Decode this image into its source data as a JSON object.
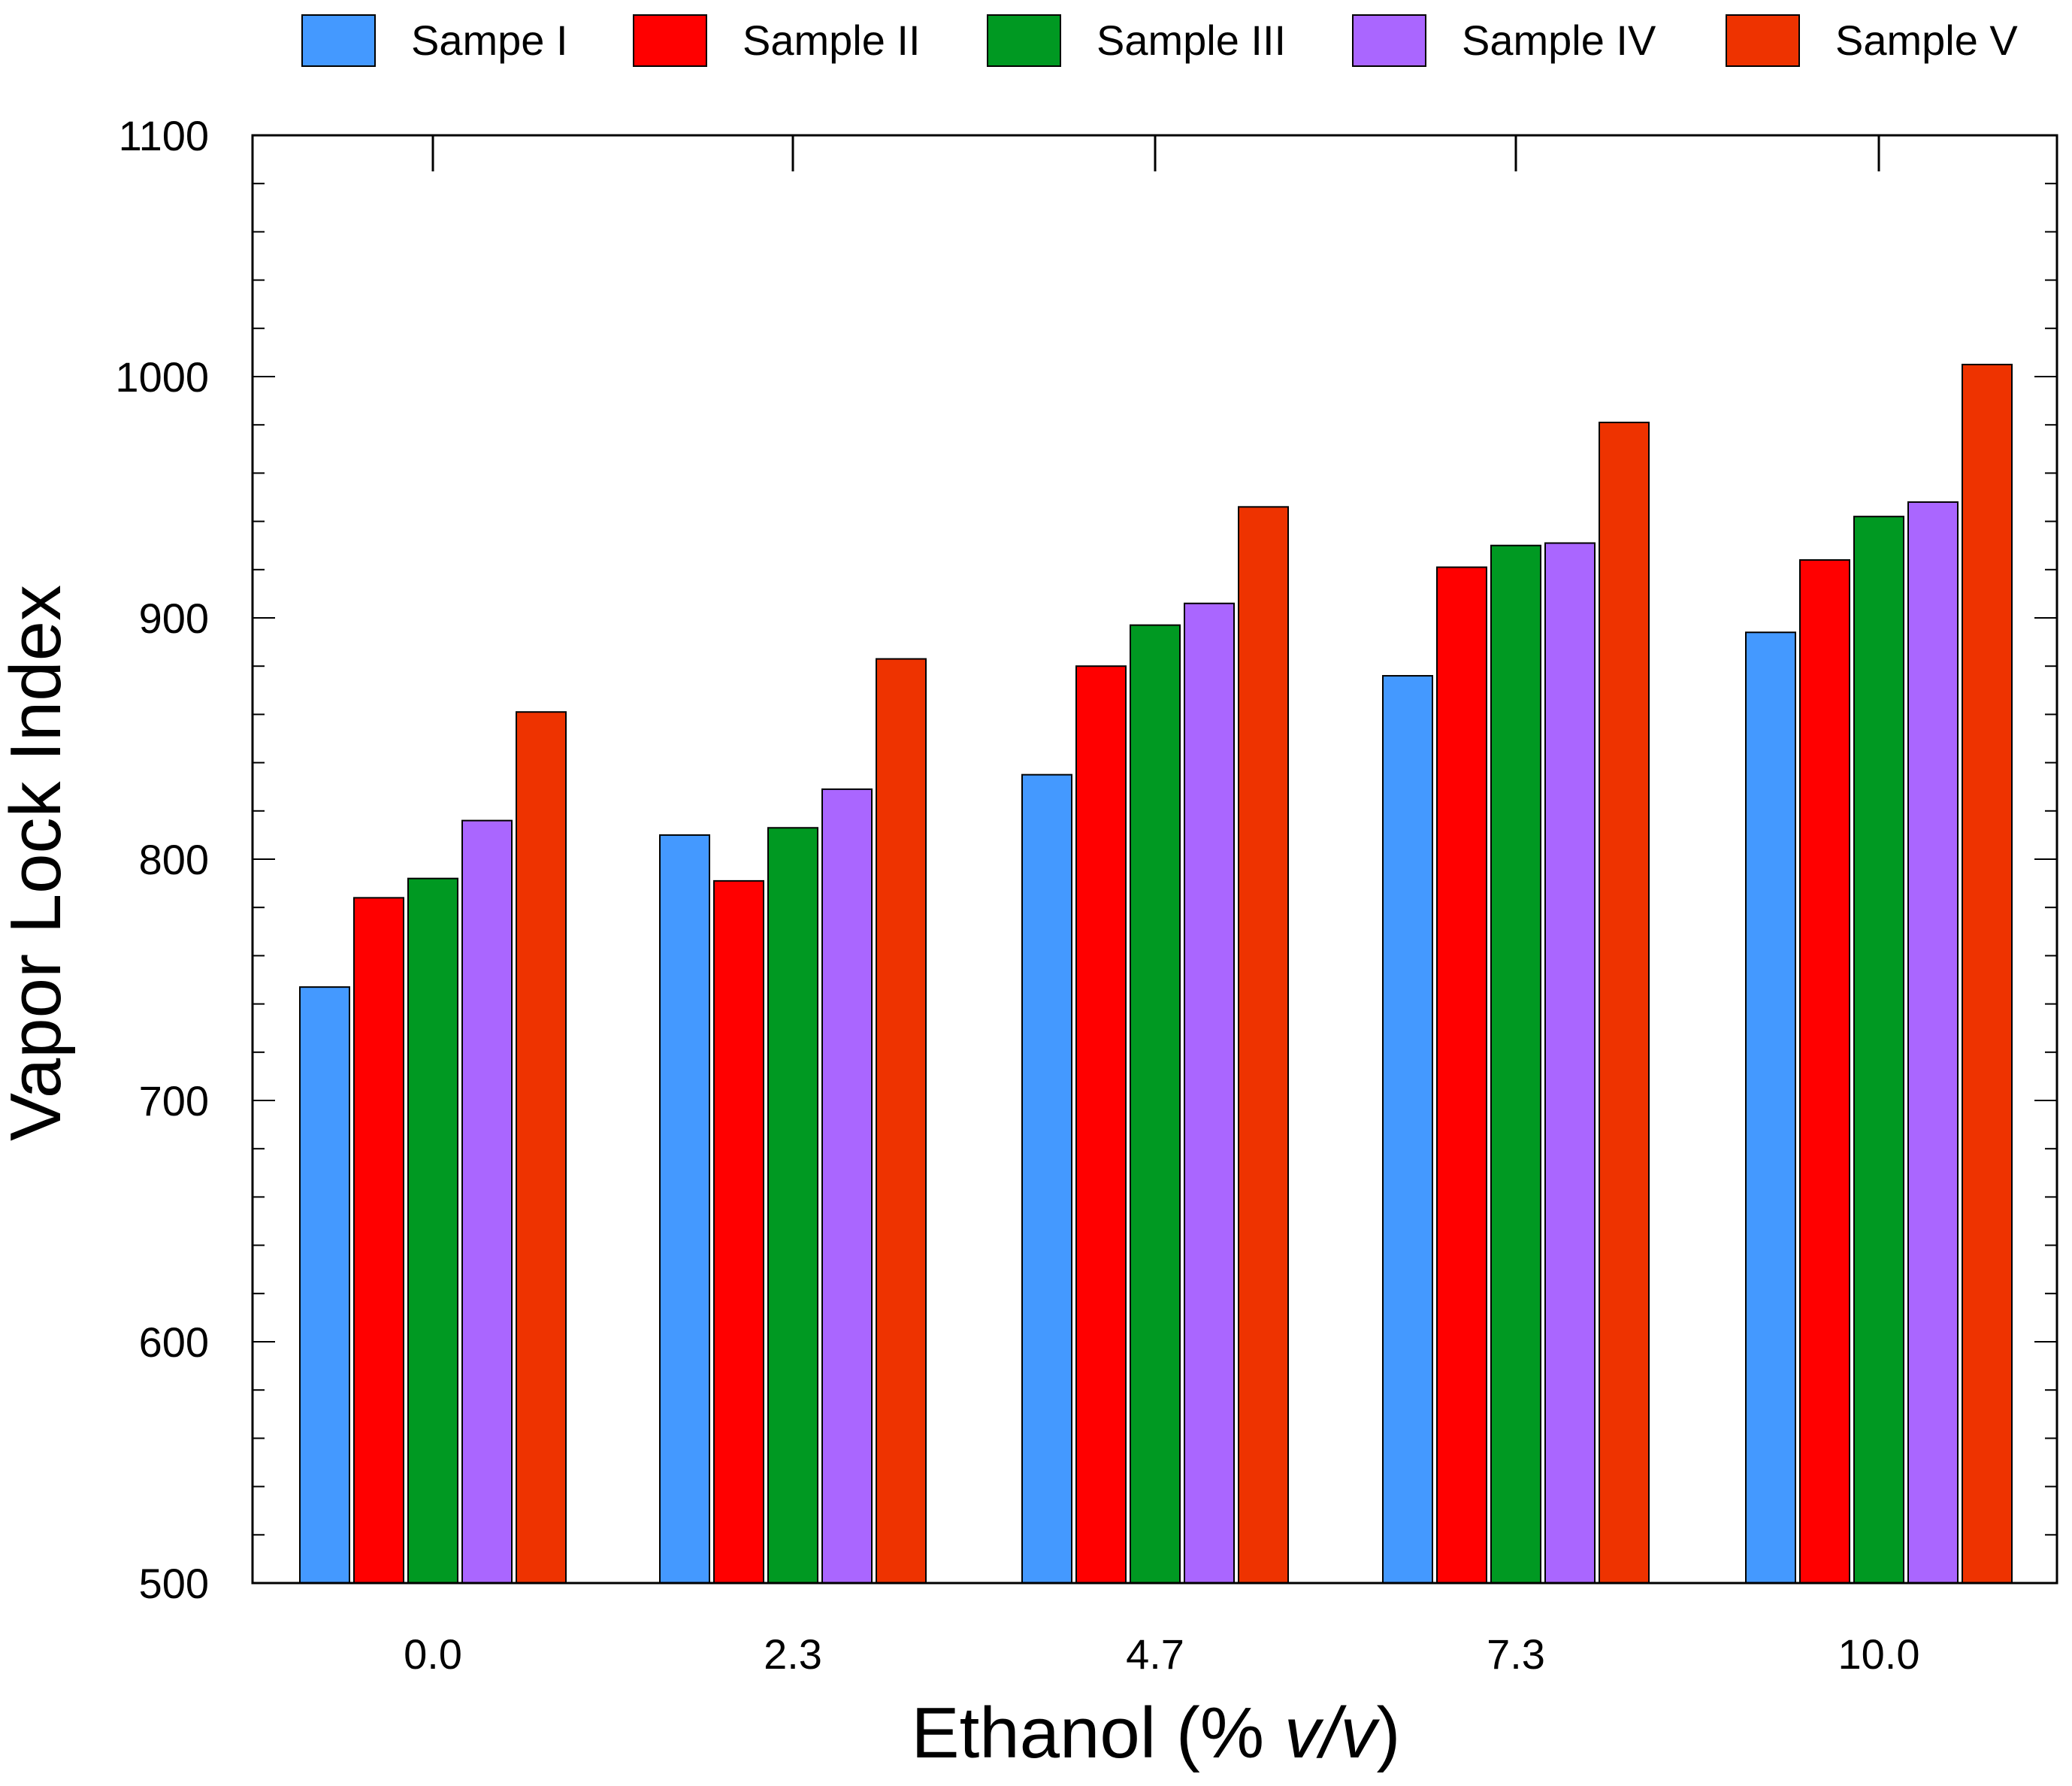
{
  "chart_data": {
    "type": "bar",
    "title": "",
    "xlabel": "Ethanol (% ",
    "xlabel_italic": "v/v",
    "xlabel_close": ")",
    "ylabel": "Vapor Lock Index",
    "categories": [
      "0.0",
      "2.3",
      "4.7",
      "7.3",
      "10.0"
    ],
    "ylim": [
      500,
      1100
    ],
    "yticks": [
      "500",
      "600",
      "700",
      "800",
      "900",
      "1000",
      "1100"
    ],
    "grid": false,
    "legend_position": "top",
    "series": [
      {
        "name": "Sampe I",
        "color": "#4499FF",
        "values": [
          747,
          810,
          835,
          876,
          894
        ]
      },
      {
        "name": "Sample II",
        "color": "#FF0000",
        "values": [
          784,
          791,
          880,
          921,
          924
        ]
      },
      {
        "name": "Sample III",
        "color": "#009922",
        "values": [
          792,
          813,
          897,
          930,
          942
        ]
      },
      {
        "name": "Sample IV",
        "color": "#AA66FF",
        "values": [
          816,
          829,
          906,
          931,
          948
        ]
      },
      {
        "name": "Sample V",
        "color": "#EE3300",
        "values": [
          861,
          883,
          946,
          981,
          1005
        ]
      }
    ]
  }
}
